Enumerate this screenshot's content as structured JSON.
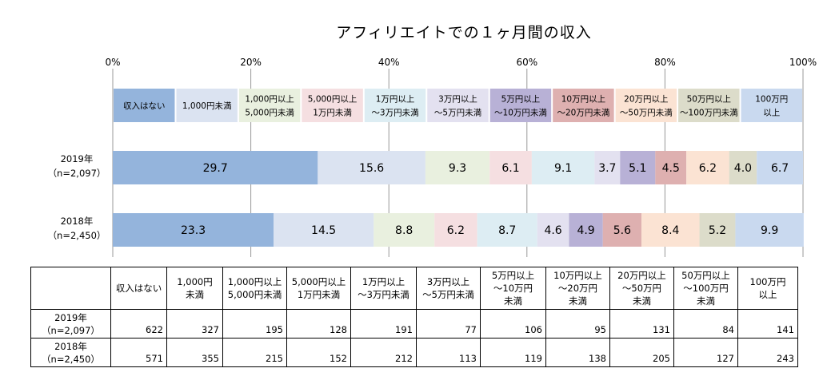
{
  "title": "アフィリエイトでの１ヶ月間の収入",
  "chart_data": {
    "type": "bar",
    "orientation": "horizontal-stacked-100",
    "xlim": [
      0,
      100
    ],
    "x_ticks": [
      "0%",
      "20%",
      "40%",
      "60%",
      "80%",
      "100%"
    ],
    "grid": true,
    "categories": [
      [
        "収入はない"
      ],
      [
        "1,000円未満"
      ],
      [
        "1,000円以上",
        "5,000円未満"
      ],
      [
        "5,000円以上",
        "1万円未満"
      ],
      [
        "1万円以上",
        "～3万円未満"
      ],
      [
        "3万円以上",
        "～5万円未満"
      ],
      [
        "5万円以上",
        "～10万円未満"
      ],
      [
        "10万円以上",
        "～20万円未満"
      ],
      [
        "20万円以上",
        "～50万円未満"
      ],
      [
        "50万円以上",
        "～100万円未満"
      ],
      [
        "100万円",
        "以上"
      ]
    ],
    "colors": [
      "#94b4dc",
      "#dbe3f1",
      "#e9f0df",
      "#f5dfe1",
      "#ddedf3",
      "#e3e1f0",
      "#b8b1d6",
      "#deb0b0",
      "#fbe3d3",
      "#dcdcca",
      "#c9d9ef"
    ],
    "series": [
      {
        "name_lines": [
          "2019年",
          "（n=2,097）"
        ],
        "values": [
          29.7,
          15.6,
          9.3,
          6.1,
          9.1,
          3.7,
          5.1,
          4.5,
          6.2,
          4.0,
          6.7
        ]
      },
      {
        "name_lines": [
          "2018年",
          "（n=2,450）"
        ],
        "values": [
          23.3,
          14.5,
          8.8,
          6.2,
          8.7,
          4.6,
          4.9,
          5.6,
          8.4,
          5.2,
          9.9
        ]
      }
    ]
  },
  "table": {
    "headers": [
      [
        "収入はない"
      ],
      [
        "1,000円",
        "未満"
      ],
      [
        "1,000円以上",
        "5,000円未満"
      ],
      [
        "5,000円以上",
        "1万円未満"
      ],
      [
        "1万円以上",
        "～3万円未満"
      ],
      [
        "3万円以上",
        "～5万円未満"
      ],
      [
        "5万円以上",
        "～10万円",
        "未満"
      ],
      [
        "10万円以上",
        "～20万円",
        "未満"
      ],
      [
        "20万円以上",
        "～50万円",
        "未満"
      ],
      [
        "50万円以上",
        "～100万円",
        "未満"
      ],
      [
        "100万円",
        "以上"
      ]
    ],
    "rows": [
      {
        "label": [
          "2019年",
          "（n=2,097）"
        ],
        "values": [
          "622",
          "327",
          "195",
          "128",
          "191",
          "77",
          "106",
          "95",
          "131",
          "84",
          "141"
        ]
      },
      {
        "label": [
          "2018年",
          "（n=2,450）"
        ],
        "values": [
          "571",
          "355",
          "215",
          "152",
          "212",
          "113",
          "119",
          "138",
          "205",
          "127",
          "243"
        ]
      }
    ]
  }
}
